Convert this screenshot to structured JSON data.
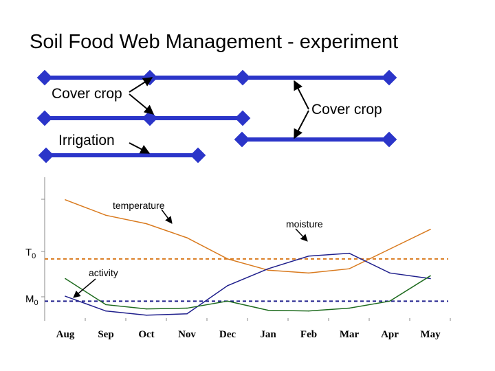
{
  "title": "Soil Food Web Management - experiment",
  "timeline": {
    "cover_crop_label_1": "Cover crop",
    "cover_crop_label_2": "Cover crop",
    "irrigation_label": "Irrigation"
  },
  "chart_data": {
    "type": "line",
    "categories": [
      "Aug",
      "Sep",
      "Oct",
      "Nov",
      "Dec",
      "Jan",
      "Feb",
      "Mar",
      "Apr",
      "May"
    ],
    "series": [
      {
        "name": "temperature",
        "color": "#d97a1e",
        "values": [
          7.2,
          6.1,
          5.5,
          4.5,
          3.0,
          2.2,
          2.0,
          2.3,
          3.7,
          5.1
        ]
      },
      {
        "name": "moisture",
        "color": "#1f1f8c",
        "values": [
          0.35,
          -0.7,
          -1.0,
          -0.9,
          1.1,
          2.3,
          3.2,
          3.4,
          2.0,
          1.6
        ]
      },
      {
        "name": "activity",
        "color": "#1e6b1e",
        "values": [
          1.6,
          -0.25,
          -0.55,
          -0.5,
          0.0,
          -0.65,
          -0.7,
          -0.5,
          0.0,
          1.8
        ]
      }
    ],
    "reference_lines": [
      {
        "label": "T",
        "subscript": "0",
        "value": 3.0,
        "color": "#d97a1e"
      },
      {
        "label": "M",
        "subscript": "0",
        "value": 0.0,
        "color": "#1f1f8c"
      }
    ],
    "annotations": {
      "temperature": "temperature",
      "moisture": "moisture",
      "activity": "activity"
    },
    "ylim": [
      -1.4,
      8.8
    ]
  }
}
